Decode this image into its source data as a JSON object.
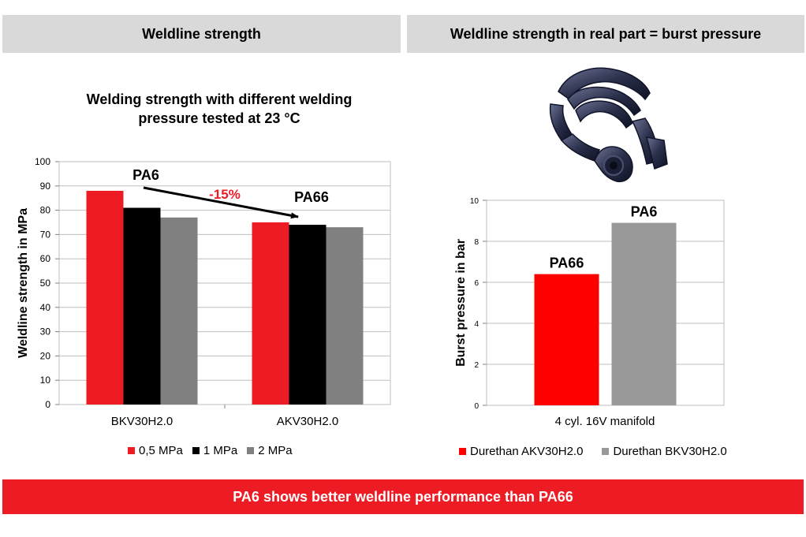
{
  "headers": {
    "left": "Weldline strength",
    "right": "Weldline strength in real part = burst pressure"
  },
  "footer": {
    "text": "PA6 shows better weldline performance than PA66"
  },
  "chart_data": [
    {
      "type": "bar",
      "title_lines": [
        "Welding strength with different welding",
        "pressure tested at 23 °C"
      ],
      "xlabel": "",
      "ylabel": "Weldline strength in MPa",
      "categories": [
        "BKV30H2.0",
        "AKV30H2.0"
      ],
      "series": [
        {
          "name": "0,5 MPa",
          "color": "#ed1c24",
          "values": [
            88,
            75
          ]
        },
        {
          "name": "1 MPa",
          "color": "#000000",
          "values": [
            81,
            74
          ]
        },
        {
          "name": "2 MPa",
          "color": "#808080",
          "values": [
            77,
            73
          ]
        }
      ],
      "ylim": [
        0,
        100
      ],
      "yticks": [
        0,
        10,
        20,
        30,
        40,
        50,
        60,
        70,
        80,
        90,
        100
      ],
      "grid": true,
      "legend_position": "bottom",
      "annotations": {
        "group1_label": "PA6",
        "group2_label": "PA66",
        "change_label": "-15%",
        "change_color": "#ed1c24",
        "arrow": "from PA6 group to PA66 group"
      }
    },
    {
      "type": "bar",
      "title": "",
      "xlabel": "",
      "ylabel": "Burst pressure in bar",
      "categories": [
        "4 cyl. 16V manifold"
      ],
      "series": [
        {
          "name": "Durethan AKV30H2.0",
          "color": "#ff0000",
          "values": [
            6.4
          ],
          "bar_label": "PA66"
        },
        {
          "name": "Durethan BKV30H2.0",
          "color": "#999999",
          "values": [
            8.9
          ],
          "bar_label": "PA6"
        }
      ],
      "ylim": [
        0,
        10
      ],
      "yticks": [
        0,
        2,
        4,
        6,
        8,
        10
      ],
      "grid": true,
      "legend_position": "bottom"
    }
  ],
  "image": {
    "icon": "intake-manifold-photo"
  }
}
